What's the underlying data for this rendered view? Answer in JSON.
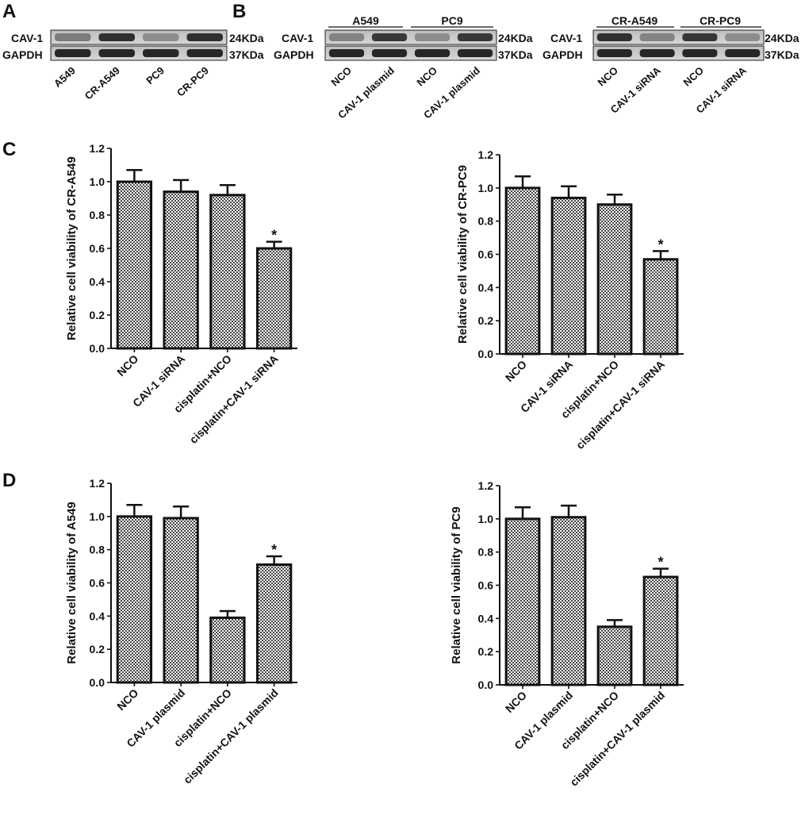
{
  "colors": {
    "ink": "#111111",
    "bar_fill": "#d4d4d4",
    "band_bg": "#c8c8c8",
    "band_dark": "#3a3a3a"
  },
  "western_blots": {
    "panel_a": {
      "label": "A",
      "row_labels": [
        "CAV-1",
        "GAPDH"
      ],
      "mw_labels": [
        "24KDa",
        "37KDa"
      ],
      "lanes": [
        "A549",
        "CR-A549",
        "PC9",
        "CR-PC9"
      ],
      "cav1_band_intensity": [
        0.45,
        0.9,
        0.35,
        0.9
      ],
      "gapdh_band_intensity": [
        0.95,
        0.95,
        0.95,
        0.95
      ]
    },
    "panel_b_left": {
      "label": "B",
      "groups": [
        "A549",
        "PC9"
      ],
      "row_labels": [
        "CAV-1",
        "GAPDH"
      ],
      "mw_labels": [
        "24KDa",
        "37KDa"
      ],
      "lanes": [
        "NCO",
        "CAV-1 plasmid",
        "NCO",
        "CAV-1 plasmid"
      ],
      "cav1_band_intensity": [
        0.4,
        0.85,
        0.35,
        0.85
      ],
      "gapdh_band_intensity": [
        0.95,
        0.95,
        0.95,
        0.95
      ]
    },
    "panel_b_right": {
      "groups": [
        "CR-A549",
        "CR-PC9"
      ],
      "row_labels": [
        "CAV-1",
        "GAPDH"
      ],
      "mw_labels": [
        "24KDa",
        "37KDa"
      ],
      "lanes": [
        "NCO",
        "CAV-1 siRNA",
        "NCO",
        "CAV-1 siRNA"
      ],
      "cav1_band_intensity": [
        0.9,
        0.4,
        0.85,
        0.35
      ],
      "gapdh_band_intensity": [
        0.95,
        0.95,
        0.95,
        0.95
      ]
    }
  },
  "panel_labels": {
    "c": "C",
    "d": "D"
  },
  "chart_data": [
    {
      "id": "c_left",
      "type": "bar",
      "categories": [
        "NCO",
        "CAV-1 siRNA",
        "cisplatin+NCO",
        "cisplatin+CAV-1 siRNA"
      ],
      "values": [
        1.0,
        0.94,
        0.92,
        0.6
      ],
      "errors": [
        0.07,
        0.07,
        0.06,
        0.04
      ],
      "significance": [
        "",
        "",
        "",
        "*"
      ],
      "ylabel": "Relative cell viability of CR-A549",
      "ylim": [
        0,
        1.2
      ],
      "yticks": [
        "0.0",
        "0.2",
        "0.4",
        "0.6",
        "0.8",
        "1.0",
        "1.2"
      ]
    },
    {
      "id": "c_right",
      "type": "bar",
      "categories": [
        "NCO",
        "CAV-1 siRNA",
        "cisplatin+NCO",
        "cisplatin+CAV-1 siRNA"
      ],
      "values": [
        1.0,
        0.94,
        0.9,
        0.57
      ],
      "errors": [
        0.07,
        0.07,
        0.06,
        0.05
      ],
      "significance": [
        "",
        "",
        "",
        "*"
      ],
      "ylabel": "Relative cell viability of CR-PC9",
      "ylim": [
        0,
        1.2
      ],
      "yticks": [
        "0.0",
        "0.2",
        "0.4",
        "0.6",
        "0.8",
        "1.0",
        "1.2"
      ]
    },
    {
      "id": "d_left",
      "type": "bar",
      "categories": [
        "NCO",
        "CAV-1 plasmid",
        "cisplatin+NCO",
        "cisplatin+CAV-1 plasmid"
      ],
      "values": [
        1.0,
        0.99,
        0.39,
        0.71
      ],
      "errors": [
        0.07,
        0.07,
        0.04,
        0.05
      ],
      "significance": [
        "",
        "",
        "",
        "*"
      ],
      "ylabel": "Relative cell viability of A549",
      "ylim": [
        0,
        1.2
      ],
      "yticks": [
        "0.0",
        "0.2",
        "0.4",
        "0.6",
        "0.8",
        "1.0",
        "1.2"
      ]
    },
    {
      "id": "d_right",
      "type": "bar",
      "categories": [
        "NCO",
        "CAV-1 plasmid",
        "cisplatin+NCO",
        "cisplatin+CAV-1 plasmid"
      ],
      "values": [
        1.0,
        1.01,
        0.35,
        0.65
      ],
      "errors": [
        0.07,
        0.07,
        0.04,
        0.05
      ],
      "significance": [
        "",
        "",
        "",
        "*"
      ],
      "ylabel": "Relative cell viability of PC9",
      "ylim": [
        0,
        1.2
      ],
      "yticks": [
        "0.0",
        "0.2",
        "0.4",
        "0.6",
        "0.8",
        "1.0",
        "1.2"
      ]
    }
  ]
}
